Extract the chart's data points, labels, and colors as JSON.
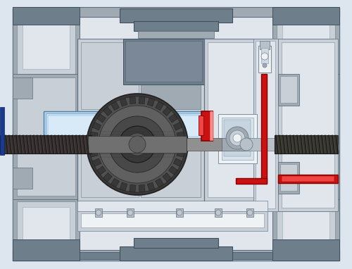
{
  "bg_color": "#dde5ee",
  "light_gray": "#c8cfd6",
  "mid_gray": "#a0aab2",
  "dark_gray": "#6e7e8a",
  "darker_gray": "#5a6870",
  "very_light_gray": "#e0e6ec",
  "white_part": "#eef2f5",
  "blue_light": "#b8d4ec",
  "blue_mid": "#90b8d8",
  "red_accent": "#cc1111",
  "dark_steel": "#383838",
  "medium_steel": "#606060",
  "light_steel": "#909090",
  "silver": "#b8c0c8",
  "hatch_bg": "#404040"
}
